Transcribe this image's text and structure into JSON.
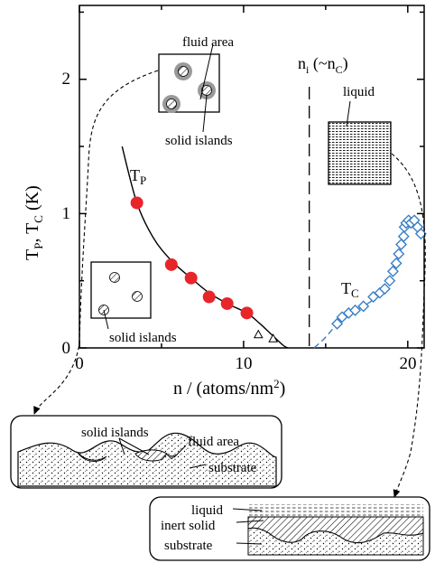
{
  "chart_data": {
    "type": "scatter",
    "xlabel": "n / (atoms/nm",
    "xlabel_sup": "2",
    "xlabel_close": ")",
    "ylabel_base": "T",
    "ylabel_sub1": "P",
    "ylabel_sep": ", T",
    "ylabel_sub2": "C",
    "ylabel_unit": " (K)",
    "xlim": [
      0,
      21
    ],
    "ylim": [
      0,
      2.55
    ],
    "xticks": [
      "0",
      "10",
      "20"
    ],
    "yticks": [
      "0",
      "1",
      "2"
    ],
    "series": [
      {
        "name": "TP",
        "label_base": "T",
        "label_sub": "P",
        "marker": "circle-filled",
        "color": "#e8252b",
        "points": [
          [
            3.5,
            1.08
          ],
          [
            5.6,
            0.62
          ],
          [
            6.8,
            0.52
          ],
          [
            7.9,
            0.38
          ],
          [
            9.0,
            0.33
          ],
          [
            10.2,
            0.26
          ]
        ]
      },
      {
        "name": "TP-open",
        "marker": "triangle-open",
        "color": "#000000",
        "points": [
          [
            10.9,
            0.1
          ],
          [
            11.8,
            0.07
          ]
        ]
      },
      {
        "name": "TC",
        "label_base": "T",
        "label_sub": "C",
        "marker": "diamond-open",
        "color": "#3a7fc6",
        "points": [
          [
            15.7,
            0.18
          ],
          [
            16.0,
            0.23
          ],
          [
            16.4,
            0.26
          ],
          [
            16.8,
            0.28
          ],
          [
            17.3,
            0.31
          ],
          [
            17.9,
            0.38
          ],
          [
            18.3,
            0.41
          ],
          [
            18.6,
            0.44
          ],
          [
            18.9,
            0.5
          ],
          [
            19.1,
            0.57
          ],
          [
            19.3,
            0.63
          ],
          [
            19.45,
            0.7
          ],
          [
            19.6,
            0.77
          ],
          [
            19.75,
            0.83
          ],
          [
            19.8,
            0.9
          ],
          [
            19.9,
            0.93
          ],
          [
            20.05,
            0.95
          ],
          [
            20.2,
            0.93
          ],
          [
            20.4,
            0.95
          ],
          [
            20.6,
            0.9
          ],
          [
            20.8,
            0.85
          ]
        ]
      }
    ],
    "tp_fit_curve": [
      [
        2.6,
        1.5
      ],
      [
        3.5,
        1.08
      ],
      [
        4.5,
        0.82
      ],
      [
        5.6,
        0.65
      ],
      [
        6.8,
        0.52
      ],
      [
        7.9,
        0.41
      ],
      [
        9.0,
        0.33
      ],
      [
        10.2,
        0.26
      ],
      [
        11.0,
        0.18
      ],
      [
        11.7,
        0.1
      ],
      [
        12.4,
        0.02
      ],
      [
        12.7,
        0.0
      ]
    ],
    "tc_fit_curve": [
      [
        14.3,
        0.0
      ],
      [
        15.0,
        0.08
      ],
      [
        15.7,
        0.18
      ],
      [
        16.4,
        0.26
      ],
      [
        17.3,
        0.31
      ],
      [
        18.3,
        0.4
      ],
      [
        18.9,
        0.5
      ],
      [
        19.4,
        0.66
      ],
      [
        19.8,
        0.86
      ],
      [
        20.1,
        0.95
      ],
      [
        20.5,
        0.94
      ],
      [
        20.8,
        0.86
      ]
    ],
    "ni_line_x": 14.0,
    "ni_label_n": "n",
    "ni_label_i": "i",
    "ni_label_rest": " (~n",
    "ni_label_c": "C",
    "ni_label_close": ")"
  },
  "annotations": {
    "fluid_area": "fluid area",
    "solid_islands_top": "solid islands",
    "liquid_top": "liquid",
    "solid_islands_box": "solid islands",
    "bottom_left_solid_islands": "solid islands",
    "bottom_left_fluid_area": "fluid area",
    "bottom_left_substrate": "substrate",
    "bottom_right_liquid": "liquid",
    "bottom_right_inert_solid": "inert solid",
    "bottom_right_substrate": "substrate"
  },
  "colors": {
    "tp": "#e8252b",
    "tc": "#3a7fc6",
    "axis": "#000000"
  }
}
